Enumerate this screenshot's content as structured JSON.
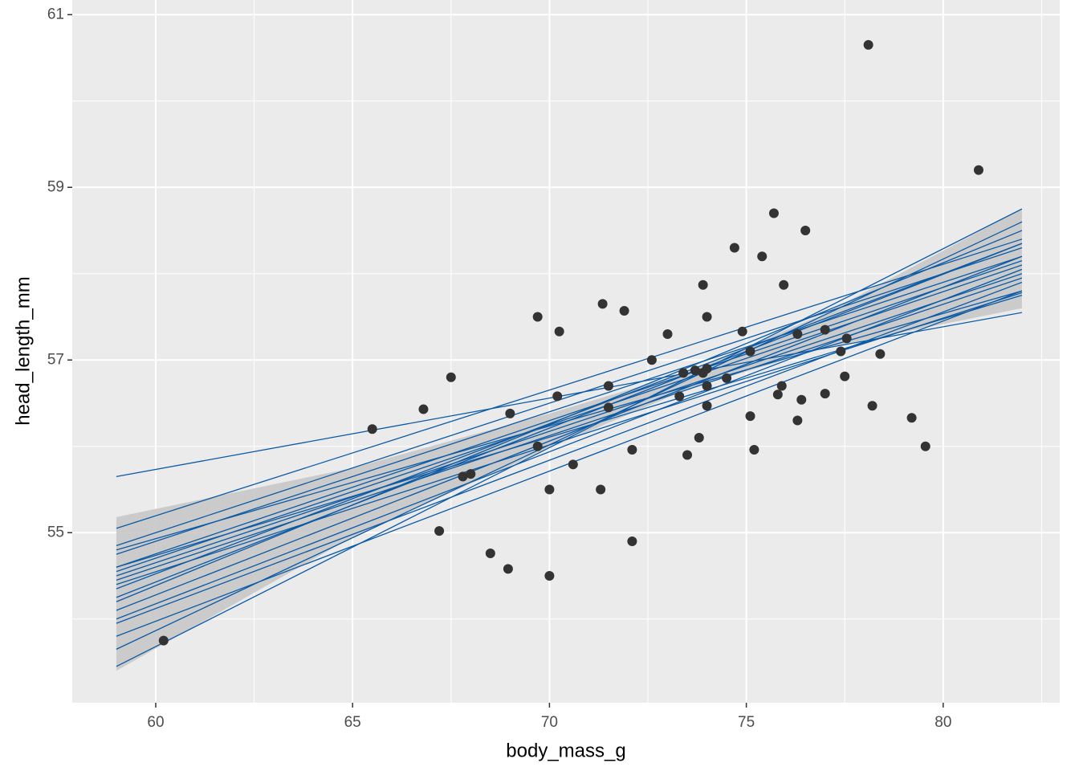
{
  "chart_data": {
    "type": "scatter",
    "x_label": "body_mass_g",
    "y_label": "head_length_mm",
    "xlim": [
      57.88,
      82.96
    ],
    "ylim": [
      53.03,
      61.17
    ],
    "xticks": [
      60,
      65,
      70,
      75,
      80
    ],
    "yticks": [
      55,
      57,
      59,
      61
    ],
    "grid": true,
    "point_color": "#333333",
    "x": [
      60.2,
      65.5,
      66.8,
      67.2,
      67.5,
      67.8,
      68.0,
      68.5,
      68.95,
      69.0,
      69.7,
      69.7,
      70.0,
      70.0,
      70.25,
      70.2,
      70.6,
      71.3,
      71.35,
      71.5,
      71.5,
      71.9,
      72.1,
      72.1,
      72.6,
      73.0,
      73.3,
      73.4,
      73.5,
      73.7,
      73.8,
      73.9,
      73.9,
      74.0,
      74.0,
      74.0,
      74.0,
      74.5,
      74.7,
      74.9,
      75.1,
      75.1,
      75.2,
      75.4,
      75.7,
      75.8,
      75.9,
      75.95,
      76.3,
      76.3,
      76.4,
      76.5,
      77.0,
      77.0,
      77.4,
      77.5,
      77.55,
      78.1,
      78.2,
      78.4,
      79.2,
      79.55,
      80.9
    ],
    "values": [
      53.75,
      56.2,
      56.43,
      55.02,
      56.8,
      55.65,
      55.68,
      54.76,
      54.58,
      56.38,
      56.0,
      57.5,
      55.5,
      54.5,
      57.33,
      56.58,
      55.79,
      55.5,
      57.65,
      56.7,
      56.45,
      57.57,
      55.96,
      54.9,
      57.0,
      57.3,
      56.58,
      56.85,
      55.9,
      56.88,
      56.1,
      57.87,
      56.85,
      56.9,
      57.5,
      56.7,
      56.47,
      56.79,
      58.3,
      57.33,
      57.1,
      56.35,
      55.96,
      58.2,
      58.7,
      56.6,
      56.7,
      57.87,
      57.3,
      56.3,
      56.54,
      58.5,
      56.61,
      57.35,
      57.1,
      56.81,
      57.25,
      60.65,
      56.47,
      57.07,
      56.33,
      56.0,
      59.2
    ],
    "band": {
      "color": "#c8c8c8",
      "x": [
        59,
        65,
        70,
        73.5,
        77,
        82
      ],
      "upper": [
        55.18,
        55.75,
        56.38,
        56.86,
        57.54,
        58.75
      ],
      "lower": [
        53.4,
        54.95,
        55.98,
        56.66,
        57.14,
        57.6
      ]
    },
    "lines": {
      "color": "#0b5aa6",
      "x": [
        59,
        82
      ],
      "y": [
        [
          55.65,
          57.55
        ],
        [
          53.45,
          58.75
        ],
        [
          55.05,
          58.4
        ],
        [
          54.85,
          58.3
        ],
        [
          54.75,
          58.2
        ],
        [
          54.6,
          58.15
        ],
        [
          54.55,
          58.1
        ],
        [
          54.5,
          58.0
        ],
        [
          54.45,
          57.95
        ],
        [
          54.35,
          58.35
        ],
        [
          54.25,
          58.35
        ],
        [
          54.2,
          58.5
        ],
        [
          54.1,
          58.2
        ],
        [
          54.0,
          58.05
        ],
        [
          53.95,
          57.9
        ],
        [
          53.8,
          57.8
        ],
        [
          53.65,
          58.6
        ],
        [
          54.6,
          57.75
        ],
        [
          54.4,
          57.78
        ],
        [
          54.8,
          57.8
        ]
      ]
    }
  }
}
